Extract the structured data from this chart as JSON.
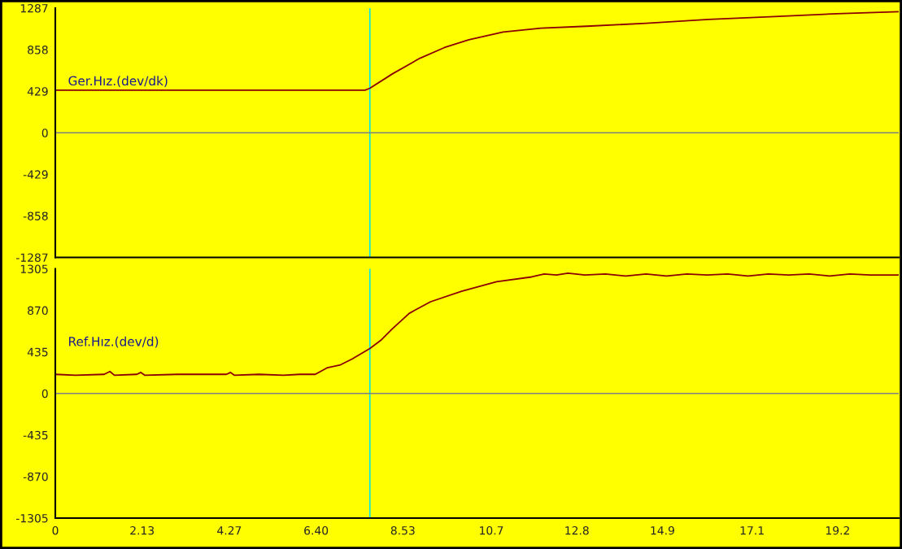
{
  "chart_data": [
    {
      "type": "line",
      "xlim": [
        0,
        20.7
      ],
      "ylim": [
        -1287,
        1287
      ],
      "tick_labels": "y",
      "xticks": [
        0,
        2.13,
        4.27,
        6.4,
        8.53,
        10.7,
        12.8,
        14.9,
        17.1,
        19.2
      ],
      "yticks": [
        -1287,
        -858,
        -429,
        0,
        429,
        858,
        1287
      ],
      "series": [
        {
          "name": "Ger.Hız.(dev/dk)",
          "color": "#8b0000",
          "x": [
            0,
            7.6,
            7.72,
            8.28,
            8.95,
            9.55,
            10.15,
            10.99,
            11.92,
            13.04,
            14.5,
            16.03,
            17.65,
            19.18,
            20.7
          ],
          "values": [
            440,
            440,
            460,
            610,
            770,
            880,
            960,
            1040,
            1080,
            1100,
            1130,
            1170,
            1200,
            1230,
            1250
          ]
        }
      ],
      "ref_lines": [
        {
          "axis": "x",
          "value": 7.72,
          "color": "#00e5e5"
        },
        {
          "axis": "y",
          "value": 0,
          "color": "#808080"
        }
      ]
    },
    {
      "type": "line",
      "xlim": [
        0,
        20.7
      ],
      "ylim": [
        -1305,
        1305
      ],
      "xticks": [
        0,
        2.13,
        4.27,
        {
          "value": 6.4,
          "label": "6.40"
        },
        8.53,
        10.7,
        12.8,
        14.9,
        17.1,
        19.2
      ],
      "yticks": [
        -1305,
        -870,
        -435,
        0,
        435,
        870,
        1305
      ],
      "series": [
        {
          "name": "Ref.Hız.(dev/d)",
          "color": "#8b0000",
          "x": [
            0,
            0.5,
            1.2,
            1.34,
            1.45,
            2.0,
            2.1,
            2.2,
            3.0,
            3.6,
            4.2,
            4.3,
            4.4,
            5.0,
            5.6,
            6.0,
            6.38,
            6.68,
            7.0,
            7.28,
            7.72,
            8.0,
            8.28,
            8.69,
            9.21,
            9.97,
            10.83,
            11.69,
            12.0,
            12.3,
            12.58,
            13.0,
            13.5,
            14.0,
            14.5,
            15.0,
            15.5,
            16.0,
            16.5,
            17.0,
            17.5,
            18.0,
            18.5,
            19.0,
            19.5,
            20.0,
            20.7
          ],
          "values": [
            200,
            190,
            200,
            230,
            190,
            200,
            220,
            190,
            200,
            200,
            200,
            220,
            190,
            200,
            190,
            200,
            200,
            270,
            300,
            360,
            470,
            560,
            680,
            840,
            960,
            1070,
            1170,
            1220,
            1250,
            1240,
            1260,
            1240,
            1250,
            1230,
            1250,
            1230,
            1250,
            1240,
            1250,
            1230,
            1250,
            1240,
            1250,
            1230,
            1250,
            1240,
            1240
          ]
        }
      ],
      "ref_lines": [
        {
          "axis": "x",
          "value": 7.72,
          "color": "#00e5e5"
        },
        {
          "axis": "y",
          "value": 0,
          "color": "#808080"
        }
      ]
    }
  ]
}
